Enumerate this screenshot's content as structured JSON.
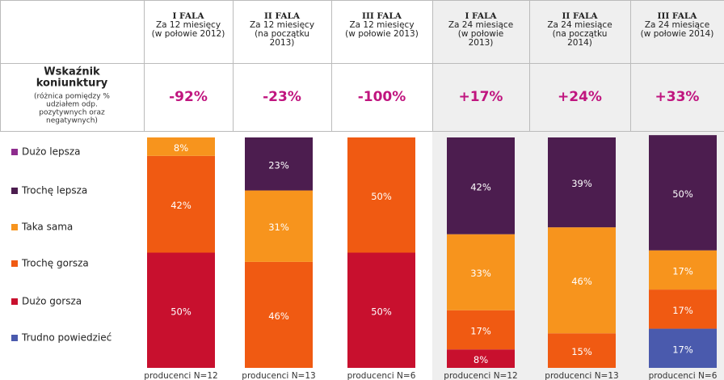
{
  "chart_data": {
    "type": "stacked_bar",
    "categories": [
      [
        "I FALA",
        "Za 12 miesięcy",
        "(w połowie 2012)"
      ],
      [
        "II FALA",
        "Za 12 miesięcy",
        "(na początku",
        "2013)"
      ],
      [
        "III FALA",
        "Za 12 miesięcy",
        "(w połowie 2013)"
      ],
      [
        "I FALA",
        "Za 24 miesiące",
        "(w połowie",
        "2013)"
      ],
      [
        "II FALA",
        "Za 24 miesiące",
        "(na początku",
        "2014)"
      ],
      [
        "III FALA",
        "Za 24 miesiące",
        "(w połowie 2014)"
      ]
    ],
    "index_label": [
      "Wskaźnik",
      "koniunktury"
    ],
    "index_note": [
      "(różnica pomiędzy %",
      "udziałem odp.",
      "pozytywnych oraz",
      "negatywnych)"
    ],
    "index_values": [
      -92,
      -23,
      -100,
      17,
      24,
      33
    ],
    "index_labels": [
      "-92%",
      "-23%",
      "-100%",
      "+17%",
      "+24%",
      "+33%"
    ],
    "sample_labels": [
      "producenci N=12",
      "producenci N=13",
      "producenci N=6",
      "producenci N=12",
      "producenci N=13",
      "producenci N=6"
    ],
    "ylim": [
      0,
      100
    ],
    "series": [
      {
        "name": "Dużo lepsza",
        "color": "#8e2c8e",
        "values": [
          0,
          0,
          0,
          0,
          0,
          0
        ],
        "value_labels": [
          null,
          null,
          null,
          null,
          null,
          null
        ]
      },
      {
        "name": "Trochę lepsza",
        "color": "#4c1d4f",
        "values": [
          0,
          23,
          0,
          42,
          39,
          50
        ],
        "value_labels": [
          null,
          "23%",
          null,
          "42%",
          "39%",
          "50%"
        ]
      },
      {
        "name": "Taka sama",
        "color": "#f7941d",
        "values": [
          8,
          31,
          0,
          33,
          46,
          17
        ],
        "value_labels": [
          "8%",
          "31%",
          null,
          "33%",
          "46%",
          "17%"
        ]
      },
      {
        "name": "Trochę gorsza",
        "color": "#f05a12",
        "values": [
          42,
          46,
          50,
          17,
          15,
          17
        ],
        "value_labels": [
          "42%",
          "46%",
          "50%",
          "17%",
          "15%",
          "17%"
        ]
      },
      {
        "name": "Dużo gorsza",
        "color": "#c8102e",
        "values": [
          50,
          0,
          50,
          8,
          0,
          0
        ],
        "value_labels": [
          "50%",
          null,
          "50%",
          "8%",
          null,
          null
        ]
      },
      {
        "name": "Trudno powiedzieć",
        "color": "#4a5aad",
        "values": [
          0,
          0,
          0,
          0,
          0,
          17
        ],
        "value_labels": [
          null,
          null,
          null,
          null,
          null,
          "17%"
        ]
      }
    ]
  }
}
